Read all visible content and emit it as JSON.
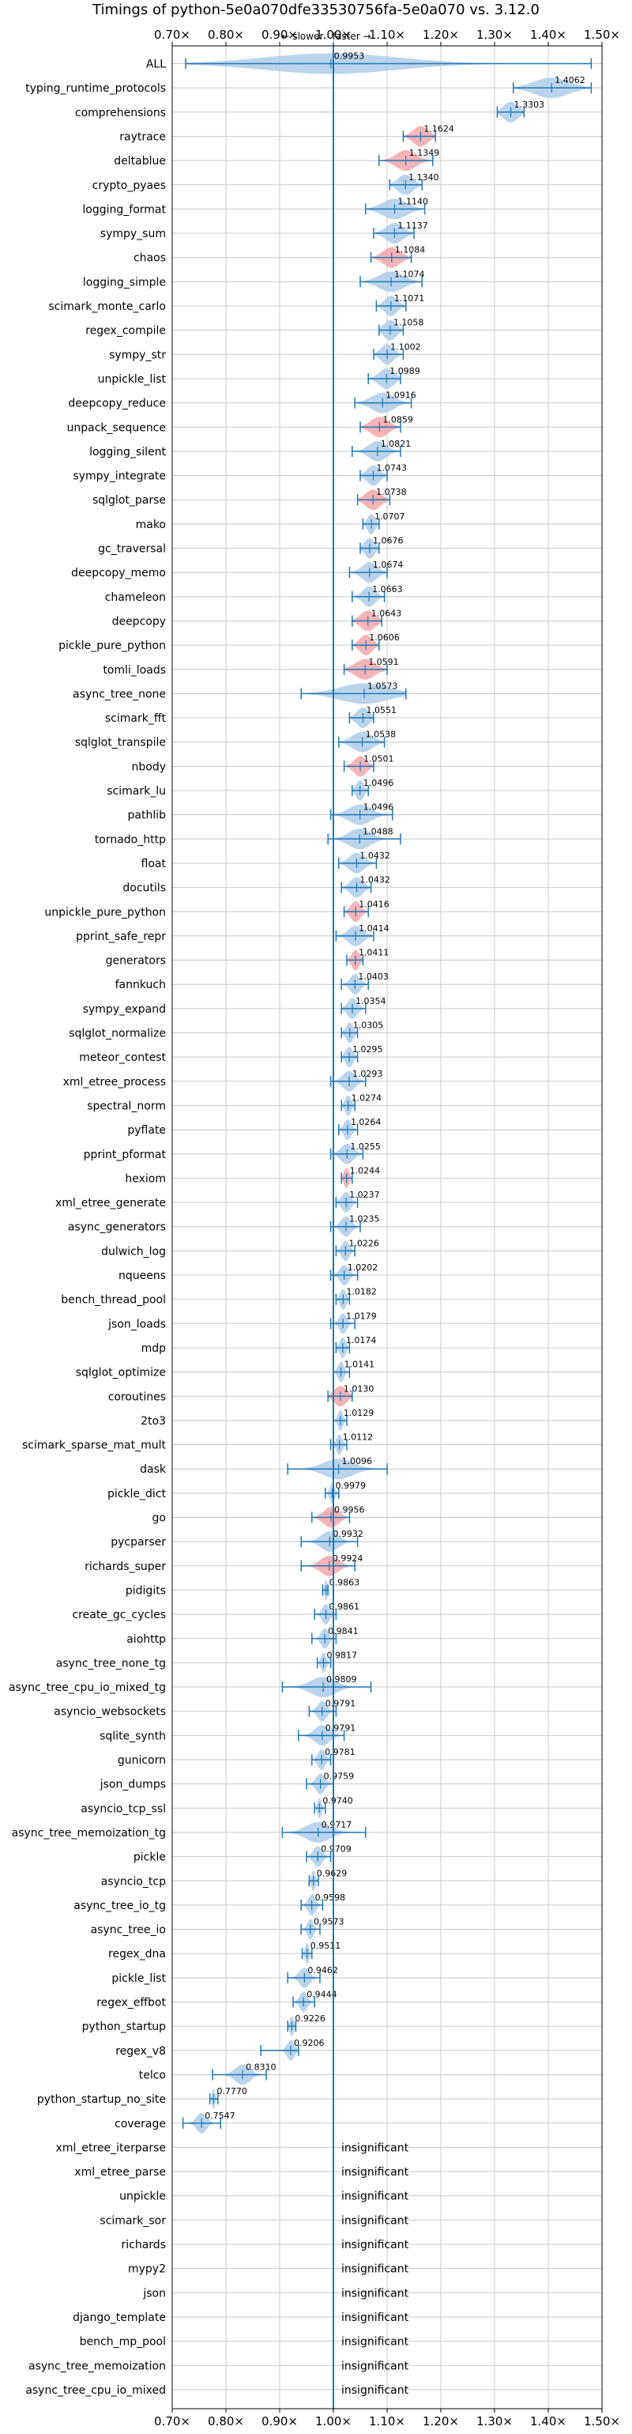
{
  "chart_data": {
    "type": "violin",
    "title": "Timings of python-5e0a070dfe33530756fa-5e0a070 vs. 3.12.0",
    "subtitle": "← slower · faster →",
    "xlim": [
      0.7,
      1.5
    ],
    "x_ticks": [
      0.7,
      0.8,
      0.9,
      1.0,
      1.1,
      1.2,
      1.3,
      1.4,
      1.5
    ],
    "x_tick_labels": [
      "0.70×",
      "0.80×",
      "0.90×",
      "1.00×",
      "1.10×",
      "1.20×",
      "1.30×",
      "1.40×",
      "1.50×"
    ],
    "reference_line": 1.0,
    "grid": true,
    "insignificant_text": "insignificant",
    "benchmarks": [
      {
        "name": "ALL",
        "value": 0.9953,
        "label": "0.9953",
        "min": 0.725,
        "max": 1.48,
        "spread": 0.27,
        "sig": "neutral"
      },
      {
        "name": "typing_runtime_protocols",
        "value": 1.4062,
        "label": "1.4062",
        "min": 1.335,
        "max": 1.48,
        "spread": 0.07,
        "sig": "faster"
      },
      {
        "name": "comprehensions",
        "value": 1.3303,
        "label": "1.3303",
        "min": 1.305,
        "max": 1.355,
        "spread": 0.03,
        "sig": "faster"
      },
      {
        "name": "raytrace",
        "value": 1.1624,
        "label": "1.1624",
        "min": 1.13,
        "max": 1.19,
        "spread": 0.03,
        "sig": "faster_red"
      },
      {
        "name": "deltablue",
        "value": 1.1349,
        "label": "1.1349",
        "min": 1.085,
        "max": 1.185,
        "spread": 0.04,
        "sig": "faster_red"
      },
      {
        "name": "crypto_pyaes",
        "value": 1.134,
        "label": "1.1340",
        "min": 1.105,
        "max": 1.165,
        "spread": 0.03,
        "sig": "faster"
      },
      {
        "name": "logging_format",
        "value": 1.114,
        "label": "1.1140",
        "min": 1.06,
        "max": 1.17,
        "spread": 0.05,
        "sig": "faster"
      },
      {
        "name": "sympy_sum",
        "value": 1.1137,
        "label": "1.1137",
        "min": 1.075,
        "max": 1.15,
        "spread": 0.035,
        "sig": "faster"
      },
      {
        "name": "chaos",
        "value": 1.1084,
        "label": "1.1084",
        "min": 1.07,
        "max": 1.145,
        "spread": 0.035,
        "sig": "faster_red"
      },
      {
        "name": "logging_simple",
        "value": 1.1074,
        "label": "1.1074",
        "min": 1.05,
        "max": 1.165,
        "spread": 0.05,
        "sig": "faster"
      },
      {
        "name": "scimark_monte_carlo",
        "value": 1.1071,
        "label": "1.1071",
        "min": 1.08,
        "max": 1.135,
        "spread": 0.025,
        "sig": "faster"
      },
      {
        "name": "regex_compile",
        "value": 1.1058,
        "label": "1.1058",
        "min": 1.085,
        "max": 1.13,
        "spread": 0.025,
        "sig": "faster"
      },
      {
        "name": "sympy_str",
        "value": 1.1002,
        "label": "1.1002",
        "min": 1.075,
        "max": 1.13,
        "spread": 0.025,
        "sig": "faster"
      },
      {
        "name": "unpickle_list",
        "value": 1.0989,
        "label": "1.0989",
        "min": 1.065,
        "max": 1.125,
        "spread": 0.03,
        "sig": "faster"
      },
      {
        "name": "deepcopy_reduce",
        "value": 1.0916,
        "label": "1.0916",
        "min": 1.04,
        "max": 1.145,
        "spread": 0.045,
        "sig": "faster"
      },
      {
        "name": "unpack_sequence",
        "value": 1.0859,
        "label": "1.0859",
        "min": 1.05,
        "max": 1.125,
        "spread": 0.035,
        "sig": "faster_red"
      },
      {
        "name": "logging_silent",
        "value": 1.0821,
        "label": "1.0821",
        "min": 1.035,
        "max": 1.125,
        "spread": 0.035,
        "sig": "faster"
      },
      {
        "name": "sympy_integrate",
        "value": 1.0743,
        "label": "1.0743",
        "min": 1.05,
        "max": 1.1,
        "spread": 0.025,
        "sig": "faster"
      },
      {
        "name": "sqlglot_parse",
        "value": 1.0738,
        "label": "1.0738",
        "min": 1.045,
        "max": 1.105,
        "spread": 0.03,
        "sig": "faster_red"
      },
      {
        "name": "mako",
        "value": 1.0707,
        "label": "1.0707",
        "min": 1.055,
        "max": 1.085,
        "spread": 0.015,
        "sig": "faster"
      },
      {
        "name": "gc_traversal",
        "value": 1.0676,
        "label": "1.0676",
        "min": 1.05,
        "max": 1.085,
        "spread": 0.02,
        "sig": "faster"
      },
      {
        "name": "deepcopy_memo",
        "value": 1.0674,
        "label": "1.0674",
        "min": 1.03,
        "max": 1.1,
        "spread": 0.03,
        "sig": "faster"
      },
      {
        "name": "chameleon",
        "value": 1.0663,
        "label": "1.0663",
        "min": 1.035,
        "max": 1.095,
        "spread": 0.025,
        "sig": "faster"
      },
      {
        "name": "deepcopy",
        "value": 1.0643,
        "label": "1.0643",
        "min": 1.035,
        "max": 1.09,
        "spread": 0.03,
        "sig": "faster_red"
      },
      {
        "name": "pickle_pure_python",
        "value": 1.0606,
        "label": "1.0606",
        "min": 1.035,
        "max": 1.085,
        "spread": 0.025,
        "sig": "faster_red"
      },
      {
        "name": "tomli_loads",
        "value": 1.0591,
        "label": "1.0591",
        "min": 1.02,
        "max": 1.1,
        "spread": 0.04,
        "sig": "faster_red"
      },
      {
        "name": "async_tree_none",
        "value": 1.0573,
        "label": "1.0573",
        "min": 0.94,
        "max": 1.135,
        "spread": 0.1,
        "sig": "faster"
      },
      {
        "name": "scimark_fft",
        "value": 1.0551,
        "label": "1.0551",
        "min": 1.03,
        "max": 1.075,
        "spread": 0.025,
        "sig": "faster"
      },
      {
        "name": "sqlglot_transpile",
        "value": 1.0538,
        "label": "1.0538",
        "min": 1.01,
        "max": 1.095,
        "spread": 0.04,
        "sig": "faster"
      },
      {
        "name": "nbody",
        "value": 1.0501,
        "label": "1.0501",
        "min": 1.02,
        "max": 1.075,
        "spread": 0.025,
        "sig": "faster_red"
      },
      {
        "name": "scimark_lu",
        "value": 1.0496,
        "label": "1.0496",
        "min": 1.035,
        "max": 1.065,
        "spread": 0.015,
        "sig": "faster"
      },
      {
        "name": "pathlib",
        "value": 1.0496,
        "label": "1.0496",
        "min": 0.995,
        "max": 1.11,
        "spread": 0.045,
        "sig": "faster"
      },
      {
        "name": "tornado_http",
        "value": 1.0488,
        "label": "1.0488",
        "min": 0.99,
        "max": 1.125,
        "spread": 0.045,
        "sig": "faster"
      },
      {
        "name": "float",
        "value": 1.0432,
        "label": "1.0432",
        "min": 1.01,
        "max": 1.08,
        "spread": 0.03,
        "sig": "faster"
      },
      {
        "name": "docutils",
        "value": 1.0432,
        "label": "1.0432",
        "min": 1.015,
        "max": 1.07,
        "spread": 0.025,
        "sig": "faster"
      },
      {
        "name": "unpickle_pure_python",
        "value": 1.0416,
        "label": "1.0416",
        "min": 1.02,
        "max": 1.065,
        "spread": 0.02,
        "sig": "faster_red"
      },
      {
        "name": "pprint_safe_repr",
        "value": 1.0414,
        "label": "1.0414",
        "min": 1.005,
        "max": 1.075,
        "spread": 0.03,
        "sig": "faster"
      },
      {
        "name": "generators",
        "value": 1.0411,
        "label": "1.0411",
        "min": 1.025,
        "max": 1.055,
        "spread": 0.015,
        "sig": "faster_red"
      },
      {
        "name": "fannkuch",
        "value": 1.0403,
        "label": "1.0403",
        "min": 1.015,
        "max": 1.065,
        "spread": 0.02,
        "sig": "faster"
      },
      {
        "name": "sympy_expand",
        "value": 1.0354,
        "label": "1.0354",
        "min": 1.015,
        "max": 1.06,
        "spread": 0.02,
        "sig": "faster"
      },
      {
        "name": "sqlglot_normalize",
        "value": 1.0305,
        "label": "1.0305",
        "min": 1.015,
        "max": 1.045,
        "spread": 0.015,
        "sig": "faster"
      },
      {
        "name": "meteor_contest",
        "value": 1.0295,
        "label": "1.0295",
        "min": 1.015,
        "max": 1.045,
        "spread": 0.015,
        "sig": "faster"
      },
      {
        "name": "xml_etree_process",
        "value": 1.0293,
        "label": "1.0293",
        "min": 0.995,
        "max": 1.06,
        "spread": 0.025,
        "sig": "faster"
      },
      {
        "name": "spectral_norm",
        "value": 1.0274,
        "label": "1.0274",
        "min": 1.015,
        "max": 1.04,
        "spread": 0.012,
        "sig": "faster"
      },
      {
        "name": "pyflate",
        "value": 1.0264,
        "label": "1.0264",
        "min": 1.01,
        "max": 1.045,
        "spread": 0.015,
        "sig": "faster"
      },
      {
        "name": "pprint_pformat",
        "value": 1.0255,
        "label": "1.0255",
        "min": 0.995,
        "max": 1.055,
        "spread": 0.025,
        "sig": "faster"
      },
      {
        "name": "hexiom",
        "value": 1.0244,
        "label": "1.0244",
        "min": 1.015,
        "max": 1.035,
        "spread": 0.01,
        "sig": "faster_red"
      },
      {
        "name": "xml_etree_generate",
        "value": 1.0237,
        "label": "1.0237",
        "min": 1.005,
        "max": 1.045,
        "spread": 0.018,
        "sig": "faster"
      },
      {
        "name": "async_generators",
        "value": 1.0235,
        "label": "1.0235",
        "min": 0.995,
        "max": 1.05,
        "spread": 0.02,
        "sig": "faster"
      },
      {
        "name": "dulwich_log",
        "value": 1.0226,
        "label": "1.0226",
        "min": 1.005,
        "max": 1.04,
        "spread": 0.015,
        "sig": "faster"
      },
      {
        "name": "nqueens",
        "value": 1.0202,
        "label": "1.0202",
        "min": 0.995,
        "max": 1.045,
        "spread": 0.018,
        "sig": "faster"
      },
      {
        "name": "bench_thread_pool",
        "value": 1.0182,
        "label": "1.0182",
        "min": 1.005,
        "max": 1.03,
        "spread": 0.012,
        "sig": "faster"
      },
      {
        "name": "json_loads",
        "value": 1.0179,
        "label": "1.0179",
        "min": 0.995,
        "max": 1.04,
        "spread": 0.015,
        "sig": "faster"
      },
      {
        "name": "mdp",
        "value": 1.0174,
        "label": "1.0174",
        "min": 1.005,
        "max": 1.03,
        "spread": 0.012,
        "sig": "faster"
      },
      {
        "name": "sqlglot_optimize",
        "value": 1.0141,
        "label": "1.0141",
        "min": 1.0,
        "max": 1.03,
        "spread": 0.012,
        "sig": "faster"
      },
      {
        "name": "coroutines",
        "value": 1.013,
        "label": "1.0130",
        "min": 0.99,
        "max": 1.035,
        "spread": 0.025,
        "sig": "faster_red"
      },
      {
        "name": "2to3",
        "value": 1.0129,
        "label": "1.0129",
        "min": 1.0,
        "max": 1.025,
        "spread": 0.01,
        "sig": "faster"
      },
      {
        "name": "scimark_sparse_mat_mult",
        "value": 1.0112,
        "label": "1.0112",
        "min": 0.995,
        "max": 1.025,
        "spread": 0.012,
        "sig": "faster"
      },
      {
        "name": "dask",
        "value": 1.0096,
        "label": "1.0096",
        "min": 0.915,
        "max": 1.1,
        "spread": 0.06,
        "sig": "faster"
      },
      {
        "name": "pickle_dict",
        "value": 0.9979,
        "label": "0.9979",
        "min": 0.985,
        "max": 1.01,
        "spread": 0.01,
        "sig": "neutral"
      },
      {
        "name": "go",
        "value": 0.9956,
        "label": "0.9956",
        "min": 0.96,
        "max": 1.03,
        "spread": 0.03,
        "sig": "slower_red"
      },
      {
        "name": "pycparser",
        "value": 0.9932,
        "label": "0.9932",
        "min": 0.94,
        "max": 1.045,
        "spread": 0.035,
        "sig": "slower"
      },
      {
        "name": "richards_super",
        "value": 0.9924,
        "label": "0.9924",
        "min": 0.94,
        "max": 1.04,
        "spread": 0.035,
        "sig": "slower_red"
      },
      {
        "name": "pidigits",
        "value": 0.9863,
        "label": "0.9863",
        "min": 0.98,
        "max": 0.99,
        "spread": 0.006,
        "sig": "slower"
      },
      {
        "name": "create_gc_cycles",
        "value": 0.9861,
        "label": "0.9861",
        "min": 0.965,
        "max": 1.005,
        "spread": 0.015,
        "sig": "slower"
      },
      {
        "name": "aiohttp",
        "value": 0.9841,
        "label": "0.9841",
        "min": 0.96,
        "max": 1.005,
        "spread": 0.015,
        "sig": "slower"
      },
      {
        "name": "async_tree_none_tg",
        "value": 0.9817,
        "label": "0.9817",
        "min": 0.97,
        "max": 0.995,
        "spread": 0.01,
        "sig": "slower"
      },
      {
        "name": "async_tree_cpu_io_mixed_tg",
        "value": 0.9809,
        "label": "0.9809",
        "min": 0.905,
        "max": 1.07,
        "spread": 0.05,
        "sig": "slower"
      },
      {
        "name": "asyncio_websockets",
        "value": 0.9791,
        "label": "0.9791",
        "min": 0.955,
        "max": 1.005,
        "spread": 0.018,
        "sig": "slower"
      },
      {
        "name": "sqlite_synth",
        "value": 0.9791,
        "label": "0.9791",
        "min": 0.935,
        "max": 1.02,
        "spread": 0.03,
        "sig": "slower"
      },
      {
        "name": "gunicorn",
        "value": 0.9781,
        "label": "0.9781",
        "min": 0.96,
        "max": 0.995,
        "spread": 0.015,
        "sig": "slower"
      },
      {
        "name": "json_dumps",
        "value": 0.9759,
        "label": "0.9759",
        "min": 0.95,
        "max": 1.0,
        "spread": 0.018,
        "sig": "slower"
      },
      {
        "name": "asyncio_tcp_ssl",
        "value": 0.974,
        "label": "0.9740",
        "min": 0.965,
        "max": 0.985,
        "spread": 0.008,
        "sig": "slower"
      },
      {
        "name": "async_tree_memoization_tg",
        "value": 0.9717,
        "label": "0.9717",
        "min": 0.905,
        "max": 1.06,
        "spread": 0.05,
        "sig": "slower"
      },
      {
        "name": "pickle",
        "value": 0.9709,
        "label": "0.9709",
        "min": 0.95,
        "max": 0.995,
        "spread": 0.018,
        "sig": "slower"
      },
      {
        "name": "asyncio_tcp",
        "value": 0.9629,
        "label": "0.9629",
        "min": 0.955,
        "max": 0.972,
        "spread": 0.008,
        "sig": "slower"
      },
      {
        "name": "async_tree_io_tg",
        "value": 0.9598,
        "label": "0.9598",
        "min": 0.94,
        "max": 0.98,
        "spread": 0.015,
        "sig": "slower"
      },
      {
        "name": "async_tree_io",
        "value": 0.9573,
        "label": "0.9573",
        "min": 0.94,
        "max": 0.975,
        "spread": 0.012,
        "sig": "slower"
      },
      {
        "name": "regex_dna",
        "value": 0.9511,
        "label": "0.9511",
        "min": 0.942,
        "max": 0.96,
        "spread": 0.008,
        "sig": "slower"
      },
      {
        "name": "pickle_list",
        "value": 0.9462,
        "label": "0.9462",
        "min": 0.915,
        "max": 0.975,
        "spread": 0.02,
        "sig": "slower"
      },
      {
        "name": "regex_effbot",
        "value": 0.9444,
        "label": "0.9444",
        "min": 0.925,
        "max": 0.965,
        "spread": 0.015,
        "sig": "slower"
      },
      {
        "name": "python_startup",
        "value": 0.9226,
        "label": "0.9226",
        "min": 0.915,
        "max": 0.93,
        "spread": 0.008,
        "sig": "slower"
      },
      {
        "name": "regex_v8",
        "value": 0.9206,
        "label": "0.9206",
        "min": 0.865,
        "max": 0.935,
        "spread": 0.015,
        "sig": "slower"
      },
      {
        "name": "telco",
        "value": 0.831,
        "label": "0.8310",
        "min": 0.775,
        "max": 0.875,
        "spread": 0.03,
        "sig": "slower"
      },
      {
        "name": "python_startup_no_site",
        "value": 0.777,
        "label": "0.7770",
        "min": 0.77,
        "max": 0.785,
        "spread": 0.006,
        "sig": "slower"
      },
      {
        "name": "coverage",
        "value": 0.7547,
        "label": "0.7547",
        "min": 0.72,
        "max": 0.79,
        "spread": 0.02,
        "sig": "slower"
      },
      {
        "name": "xml_etree_iterparse",
        "sig": "insignificant"
      },
      {
        "name": "xml_etree_parse",
        "sig": "insignificant"
      },
      {
        "name": "unpickle",
        "sig": "insignificant"
      },
      {
        "name": "scimark_sor",
        "sig": "insignificant"
      },
      {
        "name": "richards",
        "sig": "insignificant"
      },
      {
        "name": "mypy2",
        "sig": "insignificant"
      },
      {
        "name": "json",
        "sig": "insignificant"
      },
      {
        "name": "django_template",
        "sig": "insignificant"
      },
      {
        "name": "bench_mp_pool",
        "sig": "insignificant"
      },
      {
        "name": "async_tree_memoization",
        "sig": "insignificant"
      },
      {
        "name": "async_tree_cpu_io_mixed",
        "sig": "insignificant"
      }
    ],
    "colors": {
      "blue_fill": "#aecde9",
      "red_fill": "#f5a6ab",
      "line": "#1f77b4",
      "grid": "#c8c8c8",
      "axis": "#000000"
    }
  }
}
